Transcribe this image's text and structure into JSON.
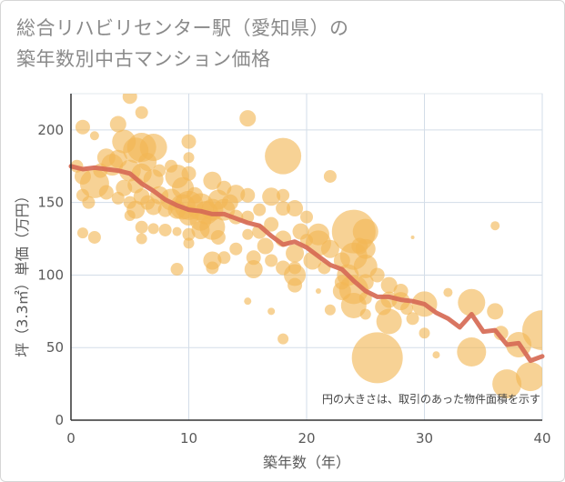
{
  "header": {
    "title_line1": "総合リハビリセンター駅（愛知県）の",
    "title_line2": "築年数別中古マンション価格"
  },
  "chart_data": {
    "type": "scatter",
    "title": "総合リハビリセンター駅（愛知県）の築年数別中古マンション価格",
    "xlabel": "築年数（年）",
    "ylabel": "坪（3.3㎡）単価（万円）",
    "xlim": [
      0,
      40
    ],
    "ylim": [
      0,
      225
    ],
    "x_ticks": [
      "0",
      "10",
      "20",
      "30",
      "40"
    ],
    "y_ticks": [
      "0",
      "50",
      "100",
      "150",
      "200"
    ],
    "x_tick_values": [
      0,
      10,
      20,
      30,
      40
    ],
    "y_tick_values": [
      0,
      50,
      100,
      150,
      200
    ],
    "grid": true,
    "annotation": "円の大きさは、取引のあった物件面積を示す",
    "colors": {
      "bubble": "#f2b654",
      "trend": "#d66a55",
      "grid": "#d3dde8"
    },
    "trend_line": {
      "x": [
        0,
        1,
        2,
        3,
        4,
        5,
        6,
        7,
        8,
        9,
        10,
        11,
        12,
        13,
        14,
        15,
        16,
        17,
        18,
        19,
        20,
        21,
        22,
        23,
        24,
        25,
        26,
        27,
        28,
        29,
        30,
        31,
        32,
        33,
        34,
        35,
        36,
        37,
        38,
        39,
        40
      ],
      "y": [
        175,
        173,
        174,
        173,
        172,
        170,
        163,
        158,
        152,
        148,
        145,
        144,
        142,
        142,
        139,
        136,
        134,
        127,
        121,
        123,
        119,
        113,
        107,
        104,
        96,
        89,
        85,
        85,
        83,
        82,
        80,
        74,
        70,
        64,
        73,
        61,
        62,
        52,
        53,
        41,
        44
      ]
    },
    "bubbles": [
      {
        "x": 0.5,
        "y": 175,
        "size": 7
      },
      {
        "x": 1,
        "y": 202,
        "size": 8
      },
      {
        "x": 1,
        "y": 168,
        "size": 9
      },
      {
        "x": 1,
        "y": 155,
        "size": 7
      },
      {
        "x": 1,
        "y": 129,
        "size": 6
      },
      {
        "x": 1.5,
        "y": 150,
        "size": 7
      },
      {
        "x": 2,
        "y": 163,
        "size": 16
      },
      {
        "x": 2,
        "y": 126,
        "size": 7
      },
      {
        "x": 2,
        "y": 196,
        "size": 5
      },
      {
        "x": 2.5,
        "y": 172,
        "size": 8
      },
      {
        "x": 3,
        "y": 181,
        "size": 10
      },
      {
        "x": 3,
        "y": 157,
        "size": 8
      },
      {
        "x": 3.5,
        "y": 176,
        "size": 12
      },
      {
        "x": 4,
        "y": 204,
        "size": 9
      },
      {
        "x": 4,
        "y": 180,
        "size": 10
      },
      {
        "x": 4,
        "y": 153,
        "size": 7
      },
      {
        "x": 4.5,
        "y": 192,
        "size": 13
      },
      {
        "x": 4.5,
        "y": 160,
        "size": 9
      },
      {
        "x": 5,
        "y": 223,
        "size": 8
      },
      {
        "x": 5,
        "y": 172,
        "size": 12
      },
      {
        "x": 5,
        "y": 150,
        "size": 7
      },
      {
        "x": 5,
        "y": 141,
        "size": 6
      },
      {
        "x": 5.5,
        "y": 186,
        "size": 14
      },
      {
        "x": 5.5,
        "y": 162,
        "size": 9
      },
      {
        "x": 5.5,
        "y": 145,
        "size": 10
      },
      {
        "x": 6,
        "y": 212,
        "size": 7
      },
      {
        "x": 6,
        "y": 188,
        "size": 16
      },
      {
        "x": 6,
        "y": 170,
        "size": 11
      },
      {
        "x": 6,
        "y": 154,
        "size": 9
      },
      {
        "x": 6,
        "y": 133,
        "size": 7
      },
      {
        "x": 6,
        "y": 125,
        "size": 6
      },
      {
        "x": 6.5,
        "y": 178,
        "size": 10
      },
      {
        "x": 6.5,
        "y": 150,
        "size": 8
      },
      {
        "x": 7,
        "y": 188,
        "size": 15
      },
      {
        "x": 7,
        "y": 166,
        "size": 11
      },
      {
        "x": 7,
        "y": 147,
        "size": 9
      },
      {
        "x": 7,
        "y": 132,
        "size": 6
      },
      {
        "x": 7.5,
        "y": 172,
        "size": 7
      },
      {
        "x": 7.5,
        "y": 155,
        "size": 10
      },
      {
        "x": 8,
        "y": 145,
        "size": 8
      },
      {
        "x": 8,
        "y": 131,
        "size": 7
      },
      {
        "x": 8.5,
        "y": 175,
        "size": 7
      },
      {
        "x": 8.5,
        "y": 152,
        "size": 12
      },
      {
        "x": 9,
        "y": 168,
        "size": 13
      },
      {
        "x": 9,
        "y": 145,
        "size": 10
      },
      {
        "x": 9,
        "y": 104,
        "size": 7
      },
      {
        "x": 9,
        "y": 130,
        "size": 5
      },
      {
        "x": 9.5,
        "y": 160,
        "size": 12
      },
      {
        "x": 9.5,
        "y": 147,
        "size": 14
      },
      {
        "x": 10,
        "y": 192,
        "size": 8
      },
      {
        "x": 10,
        "y": 181,
        "size": 6
      },
      {
        "x": 10,
        "y": 170,
        "size": 8
      },
      {
        "x": 10,
        "y": 148,
        "size": 16
      },
      {
        "x": 10,
        "y": 141,
        "size": 11
      },
      {
        "x": 10,
        "y": 128,
        "size": 7
      },
      {
        "x": 10,
        "y": 122,
        "size": 6
      },
      {
        "x": 10.5,
        "y": 155,
        "size": 9
      },
      {
        "x": 11,
        "y": 147,
        "size": 15
      },
      {
        "x": 11,
        "y": 138,
        "size": 12
      },
      {
        "x": 11,
        "y": 131,
        "size": 10
      },
      {
        "x": 11.5,
        "y": 143,
        "size": 13
      },
      {
        "x": 12,
        "y": 165,
        "size": 10
      },
      {
        "x": 12,
        "y": 145,
        "size": 12
      },
      {
        "x": 12,
        "y": 133,
        "size": 14
      },
      {
        "x": 12,
        "y": 110,
        "size": 10
      },
      {
        "x": 12,
        "y": 105,
        "size": 7
      },
      {
        "x": 12.5,
        "y": 152,
        "size": 11
      },
      {
        "x": 12.5,
        "y": 126,
        "size": 8
      },
      {
        "x": 13,
        "y": 160,
        "size": 8
      },
      {
        "x": 13,
        "y": 145,
        "size": 12
      },
      {
        "x": 13,
        "y": 112,
        "size": 7
      },
      {
        "x": 13.5,
        "y": 150,
        "size": 9
      },
      {
        "x": 14,
        "y": 156,
        "size": 10
      },
      {
        "x": 14,
        "y": 140,
        "size": 8
      },
      {
        "x": 14,
        "y": 118,
        "size": 7
      },
      {
        "x": 15,
        "y": 208,
        "size": 9
      },
      {
        "x": 15,
        "y": 155,
        "size": 8
      },
      {
        "x": 15,
        "y": 140,
        "size": 7
      },
      {
        "x": 15,
        "y": 128,
        "size": 6
      },
      {
        "x": 15,
        "y": 82,
        "size": 4
      },
      {
        "x": 15.5,
        "y": 112,
        "size": 8
      },
      {
        "x": 15.5,
        "y": 104,
        "size": 10
      },
      {
        "x": 16,
        "y": 145,
        "size": 7
      },
      {
        "x": 16,
        "y": 130,
        "size": 8
      },
      {
        "x": 16.5,
        "y": 120,
        "size": 9
      },
      {
        "x": 17,
        "y": 154,
        "size": 10
      },
      {
        "x": 17,
        "y": 135,
        "size": 8
      },
      {
        "x": 17,
        "y": 110,
        "size": 7
      },
      {
        "x": 17,
        "y": 75,
        "size": 4
      },
      {
        "x": 18,
        "y": 182,
        "size": 20
      },
      {
        "x": 18,
        "y": 146,
        "size": 8
      },
      {
        "x": 18,
        "y": 155,
        "size": 7
      },
      {
        "x": 18,
        "y": 125,
        "size": 9
      },
      {
        "x": 18,
        "y": 105,
        "size": 8
      },
      {
        "x": 18,
        "y": 56,
        "size": 6
      },
      {
        "x": 19,
        "y": 146,
        "size": 9
      },
      {
        "x": 19,
        "y": 115,
        "size": 10
      },
      {
        "x": 19,
        "y": 105,
        "size": 7
      },
      {
        "x": 19,
        "y": 100,
        "size": 12
      },
      {
        "x": 19,
        "y": 93,
        "size": 8
      },
      {
        "x": 19.5,
        "y": 130,
        "size": 9
      },
      {
        "x": 20,
        "y": 140,
        "size": 7
      },
      {
        "x": 20,
        "y": 124,
        "size": 7
      },
      {
        "x": 20.5,
        "y": 110,
        "size": 10
      },
      {
        "x": 21,
        "y": 128,
        "size": 12
      },
      {
        "x": 21,
        "y": 122,
        "size": 14
      },
      {
        "x": 21,
        "y": 89,
        "size": 3
      },
      {
        "x": 21.5,
        "y": 105,
        "size": 7
      },
      {
        "x": 22,
        "y": 168,
        "size": 7
      },
      {
        "x": 22,
        "y": 118,
        "size": 10
      },
      {
        "x": 22,
        "y": 76,
        "size": 6
      },
      {
        "x": 23,
        "y": 110,
        "size": 9
      },
      {
        "x": 23,
        "y": 95,
        "size": 8
      },
      {
        "x": 23,
        "y": 89,
        "size": 10
      },
      {
        "x": 23.5,
        "y": 100,
        "size": 12
      },
      {
        "x": 24,
        "y": 130,
        "size": 24
      },
      {
        "x": 24,
        "y": 113,
        "size": 15
      },
      {
        "x": 24,
        "y": 90,
        "size": 16
      },
      {
        "x": 24,
        "y": 79,
        "size": 14
      },
      {
        "x": 24.5,
        "y": 120,
        "size": 9
      },
      {
        "x": 25,
        "y": 130,
        "size": 14
      },
      {
        "x": 25,
        "y": 118,
        "size": 11
      },
      {
        "x": 25,
        "y": 106,
        "size": 13
      },
      {
        "x": 25,
        "y": 95,
        "size": 9
      },
      {
        "x": 25,
        "y": 84,
        "size": 7
      },
      {
        "x": 25,
        "y": 73,
        "size": 6
      },
      {
        "x": 26,
        "y": 100,
        "size": 8
      },
      {
        "x": 26,
        "y": 43,
        "size": 28
      },
      {
        "x": 26.5,
        "y": 78,
        "size": 9
      },
      {
        "x": 27,
        "y": 93,
        "size": 9
      },
      {
        "x": 27,
        "y": 83,
        "size": 9
      },
      {
        "x": 27,
        "y": 68,
        "size": 14
      },
      {
        "x": 28,
        "y": 89,
        "size": 8
      },
      {
        "x": 28,
        "y": 82,
        "size": 10
      },
      {
        "x": 28.5,
        "y": 77,
        "size": 7
      },
      {
        "x": 29,
        "y": 126,
        "size": 2
      },
      {
        "x": 29,
        "y": 70,
        "size": 7
      },
      {
        "x": 30,
        "y": 80,
        "size": 14
      },
      {
        "x": 30,
        "y": 60,
        "size": 6
      },
      {
        "x": 31,
        "y": 45,
        "size": 4
      },
      {
        "x": 32,
        "y": 88,
        "size": 5
      },
      {
        "x": 34,
        "y": 81,
        "size": 15
      },
      {
        "x": 34,
        "y": 47,
        "size": 16
      },
      {
        "x": 36,
        "y": 134,
        "size": 5
      },
      {
        "x": 36,
        "y": 75,
        "size": 9
      },
      {
        "x": 36.5,
        "y": 60,
        "size": 8
      },
      {
        "x": 37,
        "y": 25,
        "size": 16
      },
      {
        "x": 38,
        "y": 52,
        "size": 14
      },
      {
        "x": 39,
        "y": 30,
        "size": 16
      },
      {
        "x": 40,
        "y": 62,
        "size": 22
      }
    ]
  }
}
